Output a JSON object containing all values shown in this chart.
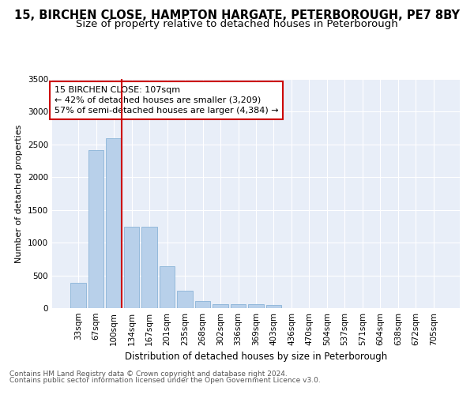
{
  "title1": "15, BIRCHEN CLOSE, HAMPTON HARGATE, PETERBOROUGH, PE7 8BY",
  "title2": "Size of property relative to detached houses in Peterborough",
  "xlabel": "Distribution of detached houses by size in Peterborough",
  "ylabel": "Number of detached properties",
  "footnote1": "Contains HM Land Registry data © Crown copyright and database right 2024.",
  "footnote2": "Contains public sector information licensed under the Open Government Licence v3.0.",
  "categories": [
    "33sqm",
    "67sqm",
    "100sqm",
    "134sqm",
    "167sqm",
    "201sqm",
    "235sqm",
    "268sqm",
    "302sqm",
    "336sqm",
    "369sqm",
    "403sqm",
    "436sqm",
    "470sqm",
    "504sqm",
    "537sqm",
    "571sqm",
    "604sqm",
    "638sqm",
    "672sqm",
    "705sqm"
  ],
  "values": [
    390,
    2410,
    2600,
    1240,
    1240,
    640,
    260,
    110,
    60,
    55,
    55,
    45,
    0,
    0,
    0,
    0,
    0,
    0,
    0,
    0,
    0
  ],
  "bar_color": "#b8d0ea",
  "bar_edge_color": "#8ab4d8",
  "red_line_label": "15 BIRCHEN CLOSE: 107sqm",
  "annotation_line1": "← 42% of detached houses are smaller (3,209)",
  "annotation_line2": "57% of semi-detached houses are larger (4,384) →",
  "annotation_box_color": "#ffffff",
  "annotation_box_edge": "#cc0000",
  "red_line_color": "#cc0000",
  "ylim": [
    0,
    3500
  ],
  "yticks": [
    0,
    500,
    1000,
    1500,
    2000,
    2500,
    3000,
    3500
  ],
  "bg_color": "#e8eef8",
  "grid_color": "#ffffff",
  "title1_fontsize": 10.5,
  "title2_fontsize": 9.5,
  "xlabel_fontsize": 8.5,
  "ylabel_fontsize": 8,
  "tick_fontsize": 7.5,
  "footnote_fontsize": 6.5
}
